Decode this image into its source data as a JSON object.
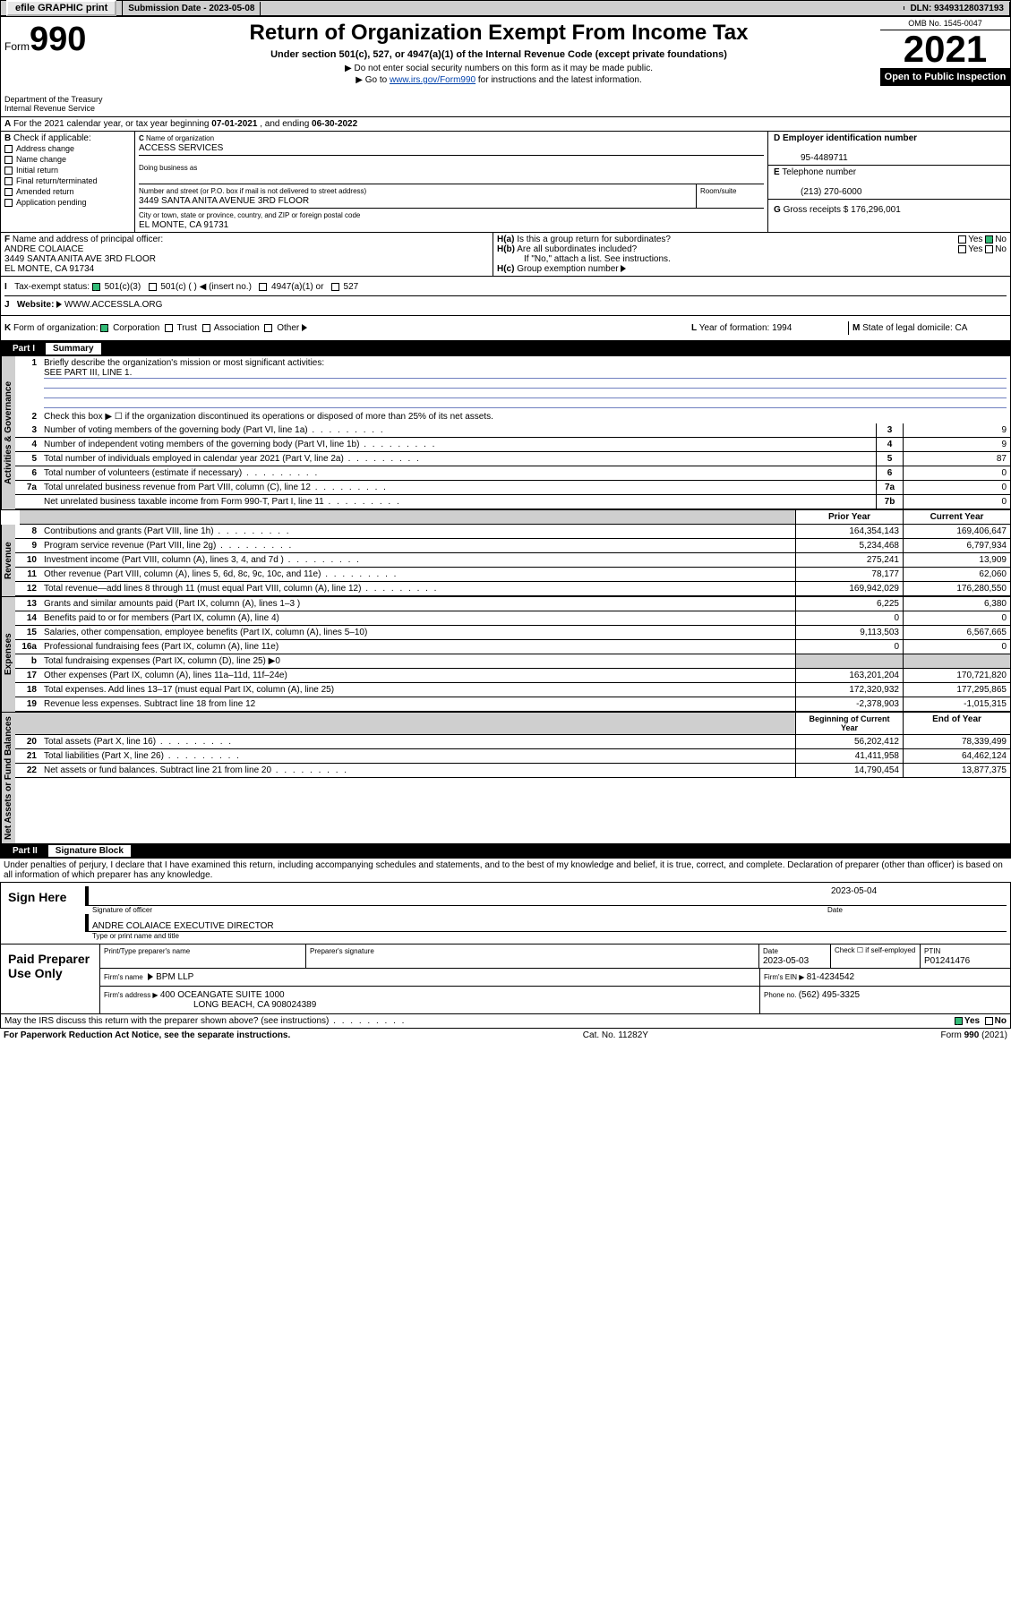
{
  "topbar": {
    "efile": "efile GRAPHIC print",
    "subdate_lbl": "Submission Date - ",
    "subdate": "2023-05-08",
    "dln_lbl": "DLN: ",
    "dln": "93493128037193"
  },
  "header": {
    "form_word": "Form",
    "form_num": "990",
    "title": "Return of Organization Exempt From Income Tax",
    "sub": "Under section 501(c), 527, or 4947(a)(1) of the Internal Revenue Code (except private foundations)",
    "note1": "Do not enter social security numbers on this form as it may be made public.",
    "note2_pre": "Go to ",
    "note2_link": "www.irs.gov/Form990",
    "note2_post": " for instructions and the latest information.",
    "omb": "OMB No. 1545-0047",
    "year": "2021",
    "open": "Open to Public Inspection",
    "dept": "Department of the Treasury",
    "irs": "Internal Revenue Service"
  },
  "period": {
    "line": "For the 2021 calendar year, or tax year beginning ",
    "begin": "07-01-2021",
    "mid": " , and ending ",
    "end": "06-30-2022"
  },
  "boxB": {
    "hdr": "Check if applicable:",
    "items": [
      "Address change",
      "Name change",
      "Initial return",
      "Final return/terminated",
      "Amended return",
      "Application pending"
    ]
  },
  "boxC": {
    "lbl_name": "Name of organization",
    "name": "ACCESS SERVICES",
    "dba_lbl": "Doing business as",
    "addr_lbl": "Number and street (or P.O. box if mail is not delivered to street address)",
    "room_lbl": "Room/suite",
    "addr": "3449 SANTA ANITA AVENUE 3RD FLOOR",
    "city_lbl": "City or town, state or province, country, and ZIP or foreign postal code",
    "city": "EL MONTE, CA  91731"
  },
  "boxD": {
    "lbl": "Employer identification number",
    "val": "95-4489711"
  },
  "boxE": {
    "lbl": "Telephone number",
    "val": "(213) 270-6000"
  },
  "boxG": {
    "lbl": "Gross receipts $ ",
    "val": "176,296,001"
  },
  "boxF": {
    "lbl": "Name and address of principal officer:",
    "name": "ANDRE COLAIACE",
    "addr": "3449 SANTA ANITA AVE 3RD FLOOR",
    "city": "EL MONTE, CA  91734"
  },
  "boxH": {
    "a": "Is this a group return for subordinates?",
    "b": "Are all subordinates included?",
    "bnote": "If \"No,\" attach a list. See instructions.",
    "c": "Group exemption number",
    "yes": "Yes",
    "no": "No"
  },
  "boxI": {
    "lbl": "Tax-exempt status:",
    "o1": "501(c)(3)",
    "o2": "501(c) (   )",
    "o2b": "(insert no.)",
    "o3": "4947(a)(1) or",
    "o4": "527"
  },
  "boxJ": {
    "lbl": "Website:",
    "val": "WWW.ACCESSLA.ORG"
  },
  "boxK": {
    "lbl": "Form of organization:",
    "o": [
      "Corporation",
      "Trust",
      "Association",
      "Other"
    ]
  },
  "boxL": {
    "lbl": "Year of formation: ",
    "val": "1994"
  },
  "boxM": {
    "lbl": "State of legal domicile: ",
    "val": "CA"
  },
  "part1": {
    "num": "Part I",
    "title": "Summary"
  },
  "tabs": {
    "gov": "Activities & Governance",
    "rev": "Revenue",
    "exp": "Expenses",
    "net": "Net Assets or Fund Balances"
  },
  "gov": {
    "q1": "Briefly describe the organization's mission or most significant activities:",
    "q1a": "SEE PART III, LINE 1.",
    "q2": "Check this box ▶ ☐  if the organization discontinued its operations or disposed of more than 25% of its net assets.",
    "rows": [
      {
        "n": "3",
        "d": "Number of voting members of the governing body (Part VI, line 1a)",
        "b": "3",
        "v": "9"
      },
      {
        "n": "4",
        "d": "Number of independent voting members of the governing body (Part VI, line 1b)",
        "b": "4",
        "v": "9"
      },
      {
        "n": "5",
        "d": "Total number of individuals employed in calendar year 2021 (Part V, line 2a)",
        "b": "5",
        "v": "87"
      },
      {
        "n": "6",
        "d": "Total number of volunteers (estimate if necessary)",
        "b": "6",
        "v": "0"
      },
      {
        "n": "7a",
        "d": "Total unrelated business revenue from Part VIII, column (C), line 12",
        "b": "7a",
        "v": "0"
      },
      {
        "n": "",
        "d": "Net unrelated business taxable income from Form 990-T, Part I, line 11",
        "b": "7b",
        "v": "0"
      }
    ]
  },
  "colhdr": {
    "prior": "Prior Year",
    "curr": "Current Year",
    "boy": "Beginning of Current Year",
    "eoy": "End of Year"
  },
  "rev": [
    {
      "n": "8",
      "d": "Contributions and grants (Part VIII, line 1h)",
      "p": "164,354,143",
      "c": "169,406,647"
    },
    {
      "n": "9",
      "d": "Program service revenue (Part VIII, line 2g)",
      "p": "5,234,468",
      "c": "6,797,934"
    },
    {
      "n": "10",
      "d": "Investment income (Part VIII, column (A), lines 3, 4, and 7d )",
      "p": "275,241",
      "c": "13,909"
    },
    {
      "n": "11",
      "d": "Other revenue (Part VIII, column (A), lines 5, 6d, 8c, 9c, 10c, and 11e)",
      "p": "78,177",
      "c": "62,060"
    },
    {
      "n": "12",
      "d": "Total revenue—add lines 8 through 11 (must equal Part VIII, column (A), line 12)",
      "p": "169,942,029",
      "c": "176,280,550"
    }
  ],
  "exp": [
    {
      "n": "13",
      "d": "Grants and similar amounts paid (Part IX, column (A), lines 1–3 )",
      "p": "6,225",
      "c": "6,380"
    },
    {
      "n": "14",
      "d": "Benefits paid to or for members (Part IX, column (A), line 4)",
      "p": "0",
      "c": "0"
    },
    {
      "n": "15",
      "d": "Salaries, other compensation, employee benefits (Part IX, column (A), lines 5–10)",
      "p": "9,113,503",
      "c": "6,567,665"
    },
    {
      "n": "16a",
      "d": "Professional fundraising fees (Part IX, column (A), line 11e)",
      "p": "0",
      "c": "0"
    },
    {
      "n": "b",
      "d": "Total fundraising expenses (Part IX, column (D), line 25) ▶0",
      "p": "",
      "c": "",
      "gray": true
    },
    {
      "n": "17",
      "d": "Other expenses (Part IX, column (A), lines 11a–11d, 11f–24e)",
      "p": "163,201,204",
      "c": "170,721,820"
    },
    {
      "n": "18",
      "d": "Total expenses. Add lines 13–17 (must equal Part IX, column (A), line 25)",
      "p": "172,320,932",
      "c": "177,295,865"
    },
    {
      "n": "19",
      "d": "Revenue less expenses. Subtract line 18 from line 12",
      "p": "-2,378,903",
      "c": "-1,015,315"
    }
  ],
  "net": [
    {
      "n": "20",
      "d": "Total assets (Part X, line 16)",
      "p": "56,202,412",
      "c": "78,339,499"
    },
    {
      "n": "21",
      "d": "Total liabilities (Part X, line 26)",
      "p": "41,411,958",
      "c": "64,462,124"
    },
    {
      "n": "22",
      "d": "Net assets or fund balances. Subtract line 21 from line 20",
      "p": "14,790,454",
      "c": "13,877,375"
    }
  ],
  "part2": {
    "num": "Part II",
    "title": "Signature Block"
  },
  "penalty": "Under penalties of perjury, I declare that I have examined this return, including accompanying schedules and statements, and to the best of my knowledge and belief, it is true, correct, and complete. Declaration of preparer (other than officer) is based on all information of which preparer has any knowledge.",
  "sign": {
    "here": "Sign Here",
    "sig_lbl": "Signature of officer",
    "date_lbl": "Date",
    "date": "2023-05-04",
    "name": "ANDRE COLAIACE  EXECUTIVE DIRECTOR",
    "name_lbl": "Type or print name and title"
  },
  "paid": {
    "lbl": "Paid Preparer Use Only",
    "c1": "Print/Type preparer's name",
    "c2": "Preparer's signature",
    "c3": "Date",
    "c3v": "2023-05-03",
    "c4": "Check ☐ if self-employed",
    "c5": "PTIN",
    "c5v": "P01241476",
    "firm_lbl": "Firm's name",
    "firm": "BPM LLP",
    "ein_lbl": "Firm's EIN ▶ ",
    "ein": "81-4234542",
    "addr_lbl": "Firm's address ▶ ",
    "addr1": "400 OCEANGATE SUITE 1000",
    "addr2": "LONG BEACH, CA  908024389",
    "phone_lbl": "Phone no. ",
    "phone": "(562) 495-3325"
  },
  "discuss": "May the IRS discuss this return with the preparer shown above? (see instructions)",
  "footer": {
    "left": "For Paperwork Reduction Act Notice, see the separate instructions.",
    "mid": "Cat. No. 11282Y",
    "right": "Form 990 (2021)"
  }
}
